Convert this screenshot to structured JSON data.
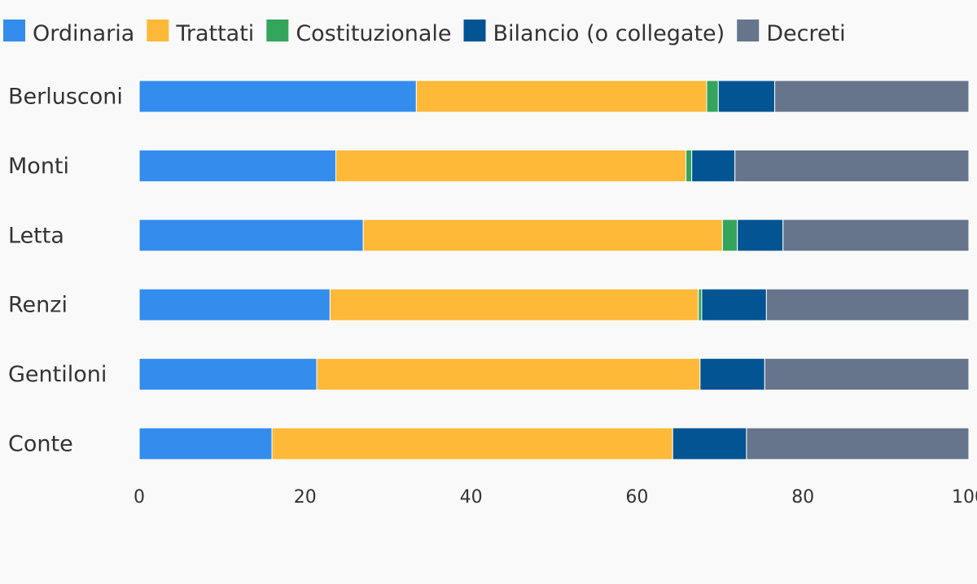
{
  "chart_data": {
    "type": "bar",
    "orientation": "horizontal",
    "stacked": true,
    "categories": [
      "Berlusconi",
      "Monti",
      "Letta",
      "Renzi",
      "Gentiloni",
      "Conte"
    ],
    "series": [
      {
        "name": "Ordinaria",
        "color": "#348ced",
        "values": [
          33.4,
          23.7,
          27.0,
          23.0,
          21.4,
          16.0
        ]
      },
      {
        "name": "Trattati",
        "color": "#feb938",
        "values": [
          35.0,
          42.2,
          43.3,
          44.4,
          46.2,
          48.3
        ]
      },
      {
        "name": "Costituzionale",
        "color": "#34a55c",
        "values": [
          1.4,
          0.7,
          1.8,
          0.4,
          0.0,
          0.0
        ]
      },
      {
        "name": "Bilancio (o collegate)",
        "color": "#035493",
        "values": [
          6.8,
          5.2,
          5.5,
          7.8,
          7.8,
          8.9
        ]
      },
      {
        "name": "Decreti",
        "color": "#66758b",
        "values": [
          23.4,
          28.2,
          22.4,
          24.4,
          24.6,
          26.8
        ]
      }
    ],
    "xlim": [
      0,
      100
    ],
    "xticks": [
      0,
      20,
      40,
      60,
      80,
      100
    ],
    "legend_position": "top-left",
    "grid": false
  }
}
